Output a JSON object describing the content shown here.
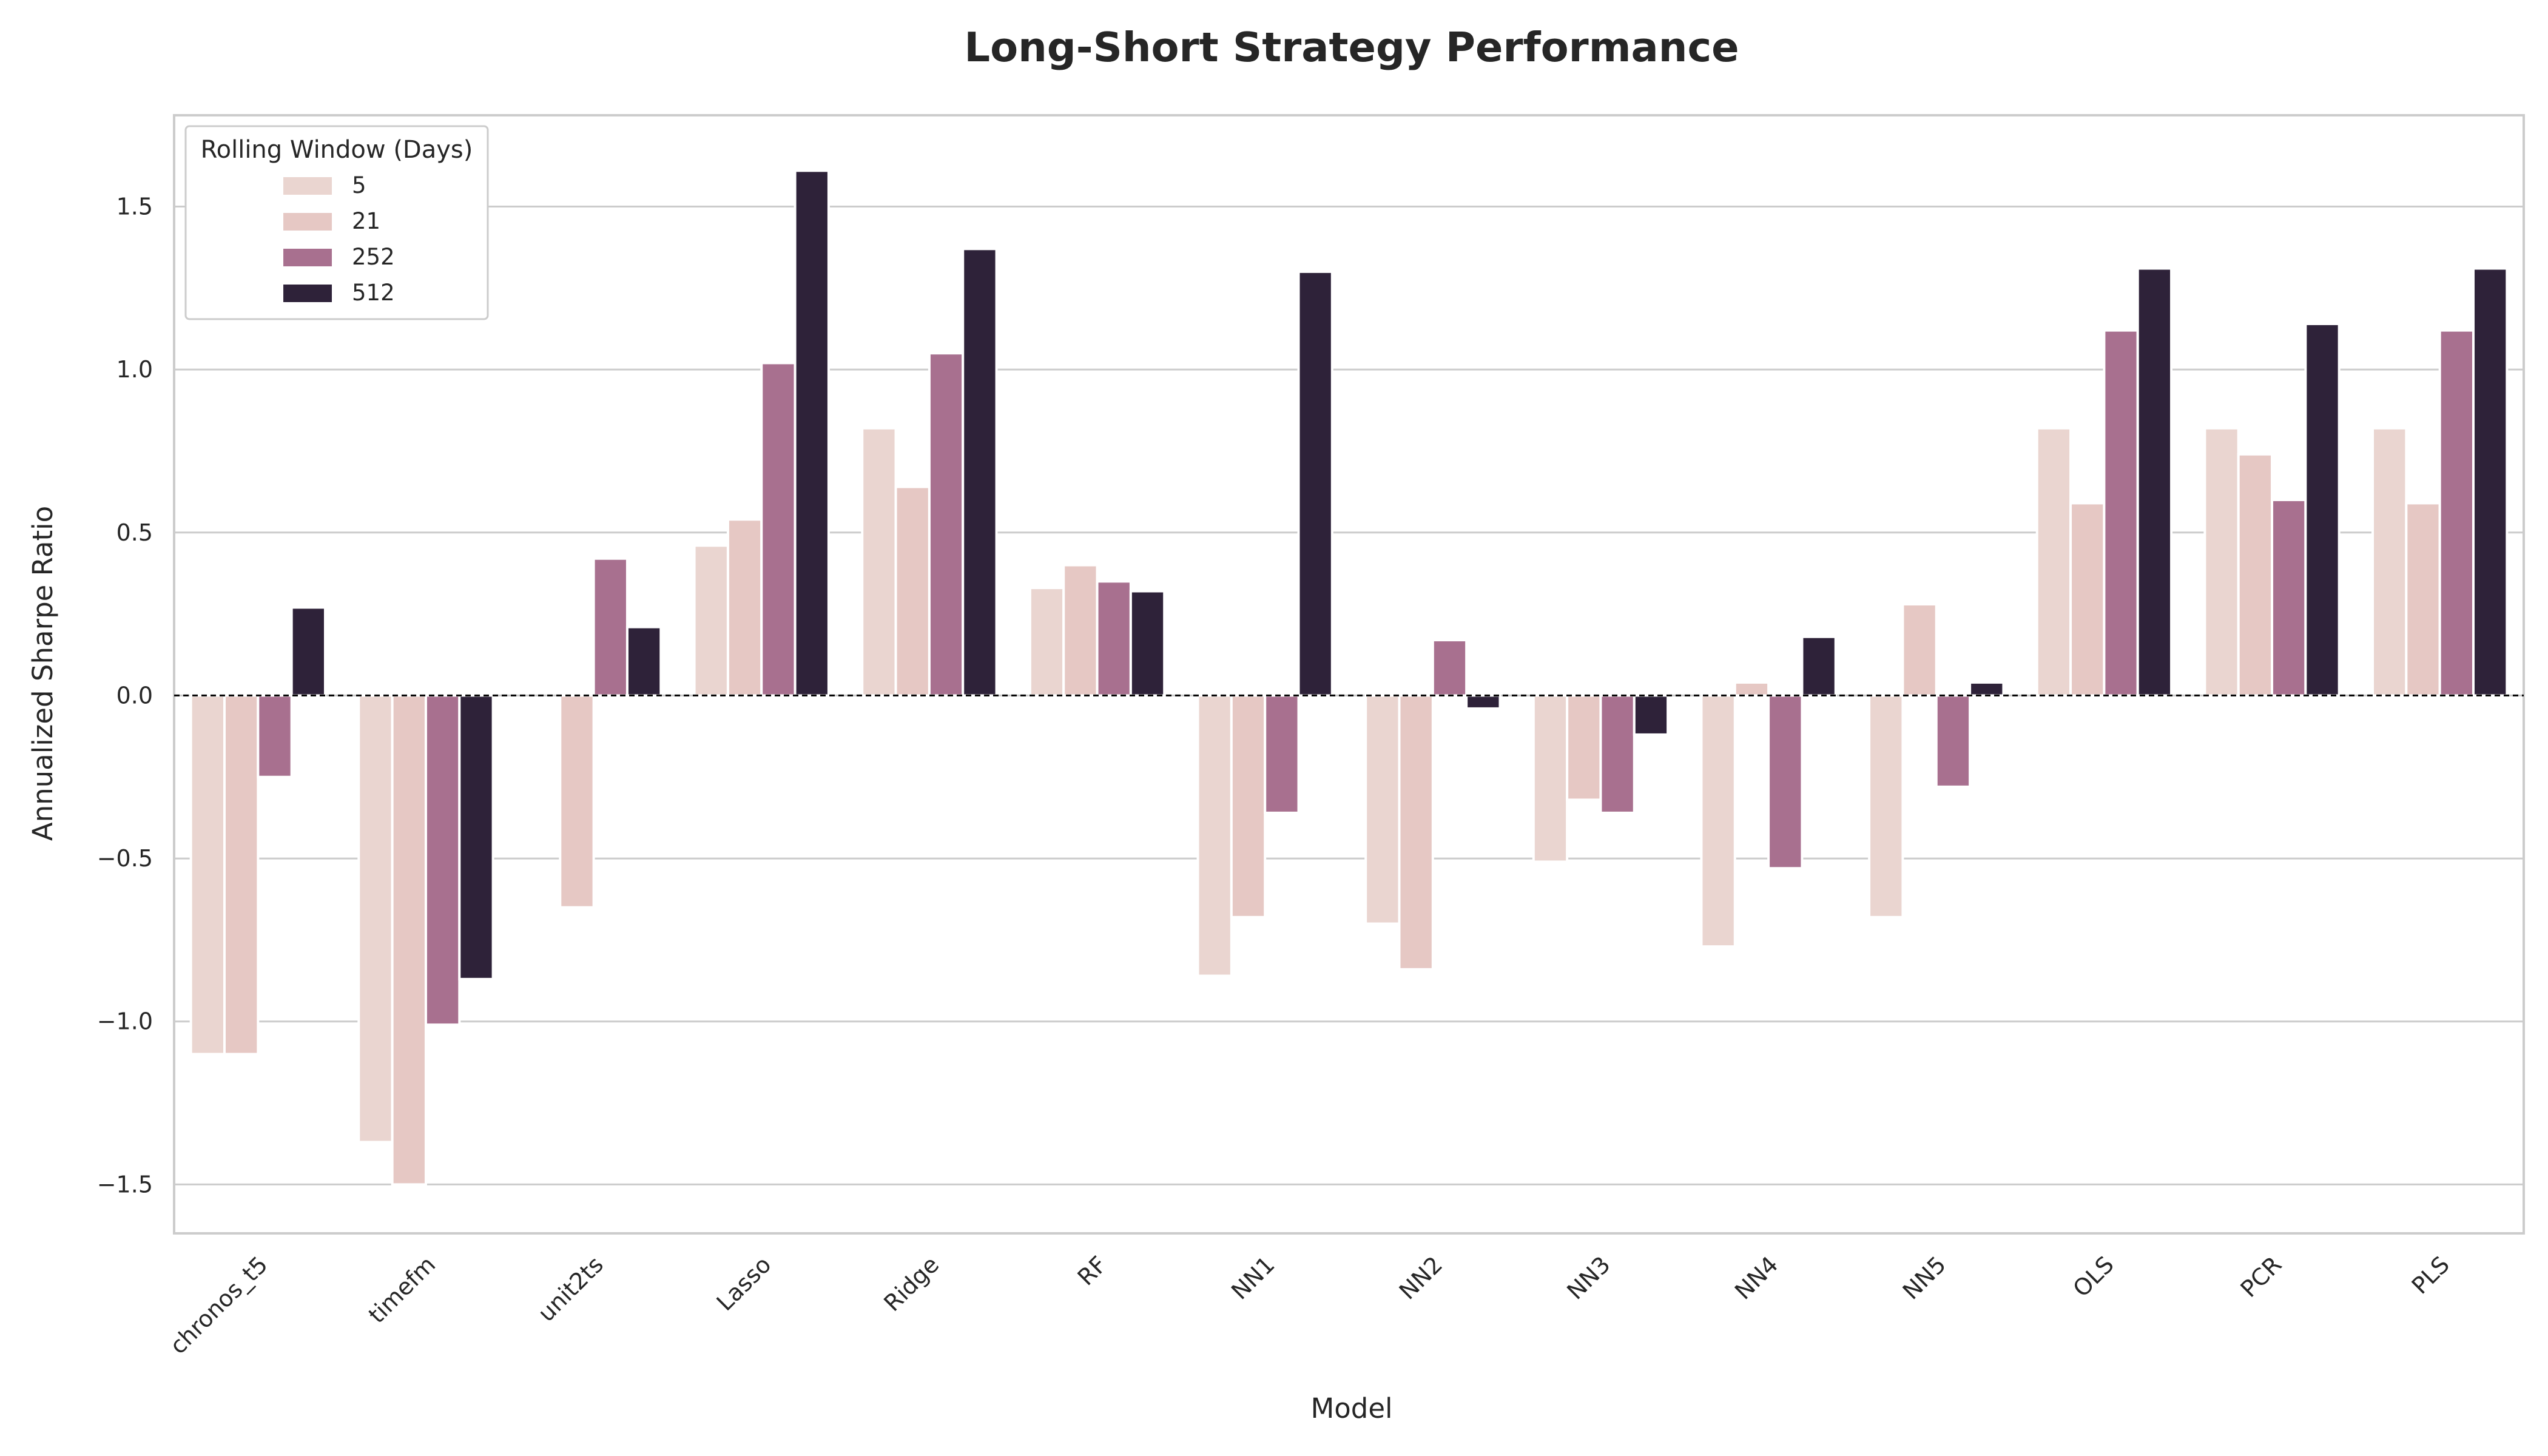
{
  "chart_data": {
    "type": "bar",
    "title": "Long-Short Strategy Performance",
    "xlabel": "Model",
    "ylabel": "Annualized Sharpe Ratio",
    "ylim": [
      -1.65,
      1.78
    ],
    "yticks": [
      -1.5,
      -1.0,
      -0.5,
      0.0,
      0.5,
      1.0,
      1.5
    ],
    "ytick_labels": [
      "−1.5",
      "−1.0",
      "−0.5",
      "0.0",
      "0.5",
      "1.0",
      "1.5"
    ],
    "grid": "horizontal",
    "zero_line": "dashed",
    "legend_title": "Rolling Window (Days)",
    "legend_position": "top-left",
    "categories": [
      "chronos_t5",
      "timefm",
      "unit2ts",
      "Lasso",
      "Ridge",
      "RF",
      "NN1",
      "NN2",
      "NN3",
      "NN4",
      "NN5",
      "OLS",
      "PCR",
      "PLS"
    ],
    "series": [
      {
        "name": "5",
        "color": "#ead5d0",
        "values": [
          -1.1,
          -1.37,
          null,
          0.46,
          0.82,
          0.33,
          -0.86,
          -0.7,
          -0.51,
          -0.77,
          -0.68,
          0.82,
          0.82,
          0.82
        ]
      },
      {
        "name": "21",
        "color": "#e6c8c4",
        "values": [
          -1.1,
          -1.5,
          -0.65,
          0.54,
          0.64,
          0.4,
          -0.68,
          -0.84,
          -0.32,
          0.04,
          0.28,
          0.59,
          0.74,
          0.59
        ]
      },
      {
        "name": "252",
        "color": "#a8708f",
        "values": [
          -0.25,
          -1.01,
          0.42,
          1.02,
          1.05,
          0.35,
          -0.36,
          0.17,
          -0.36,
          -0.53,
          -0.28,
          1.12,
          0.6,
          1.12
        ]
      },
      {
        "name": "512",
        "color": "#2e2239",
        "values": [
          0.27,
          -0.87,
          0.21,
          1.61,
          1.37,
          0.32,
          1.3,
          -0.04,
          -0.12,
          0.18,
          0.04,
          1.31,
          1.14,
          1.31
        ]
      }
    ]
  }
}
